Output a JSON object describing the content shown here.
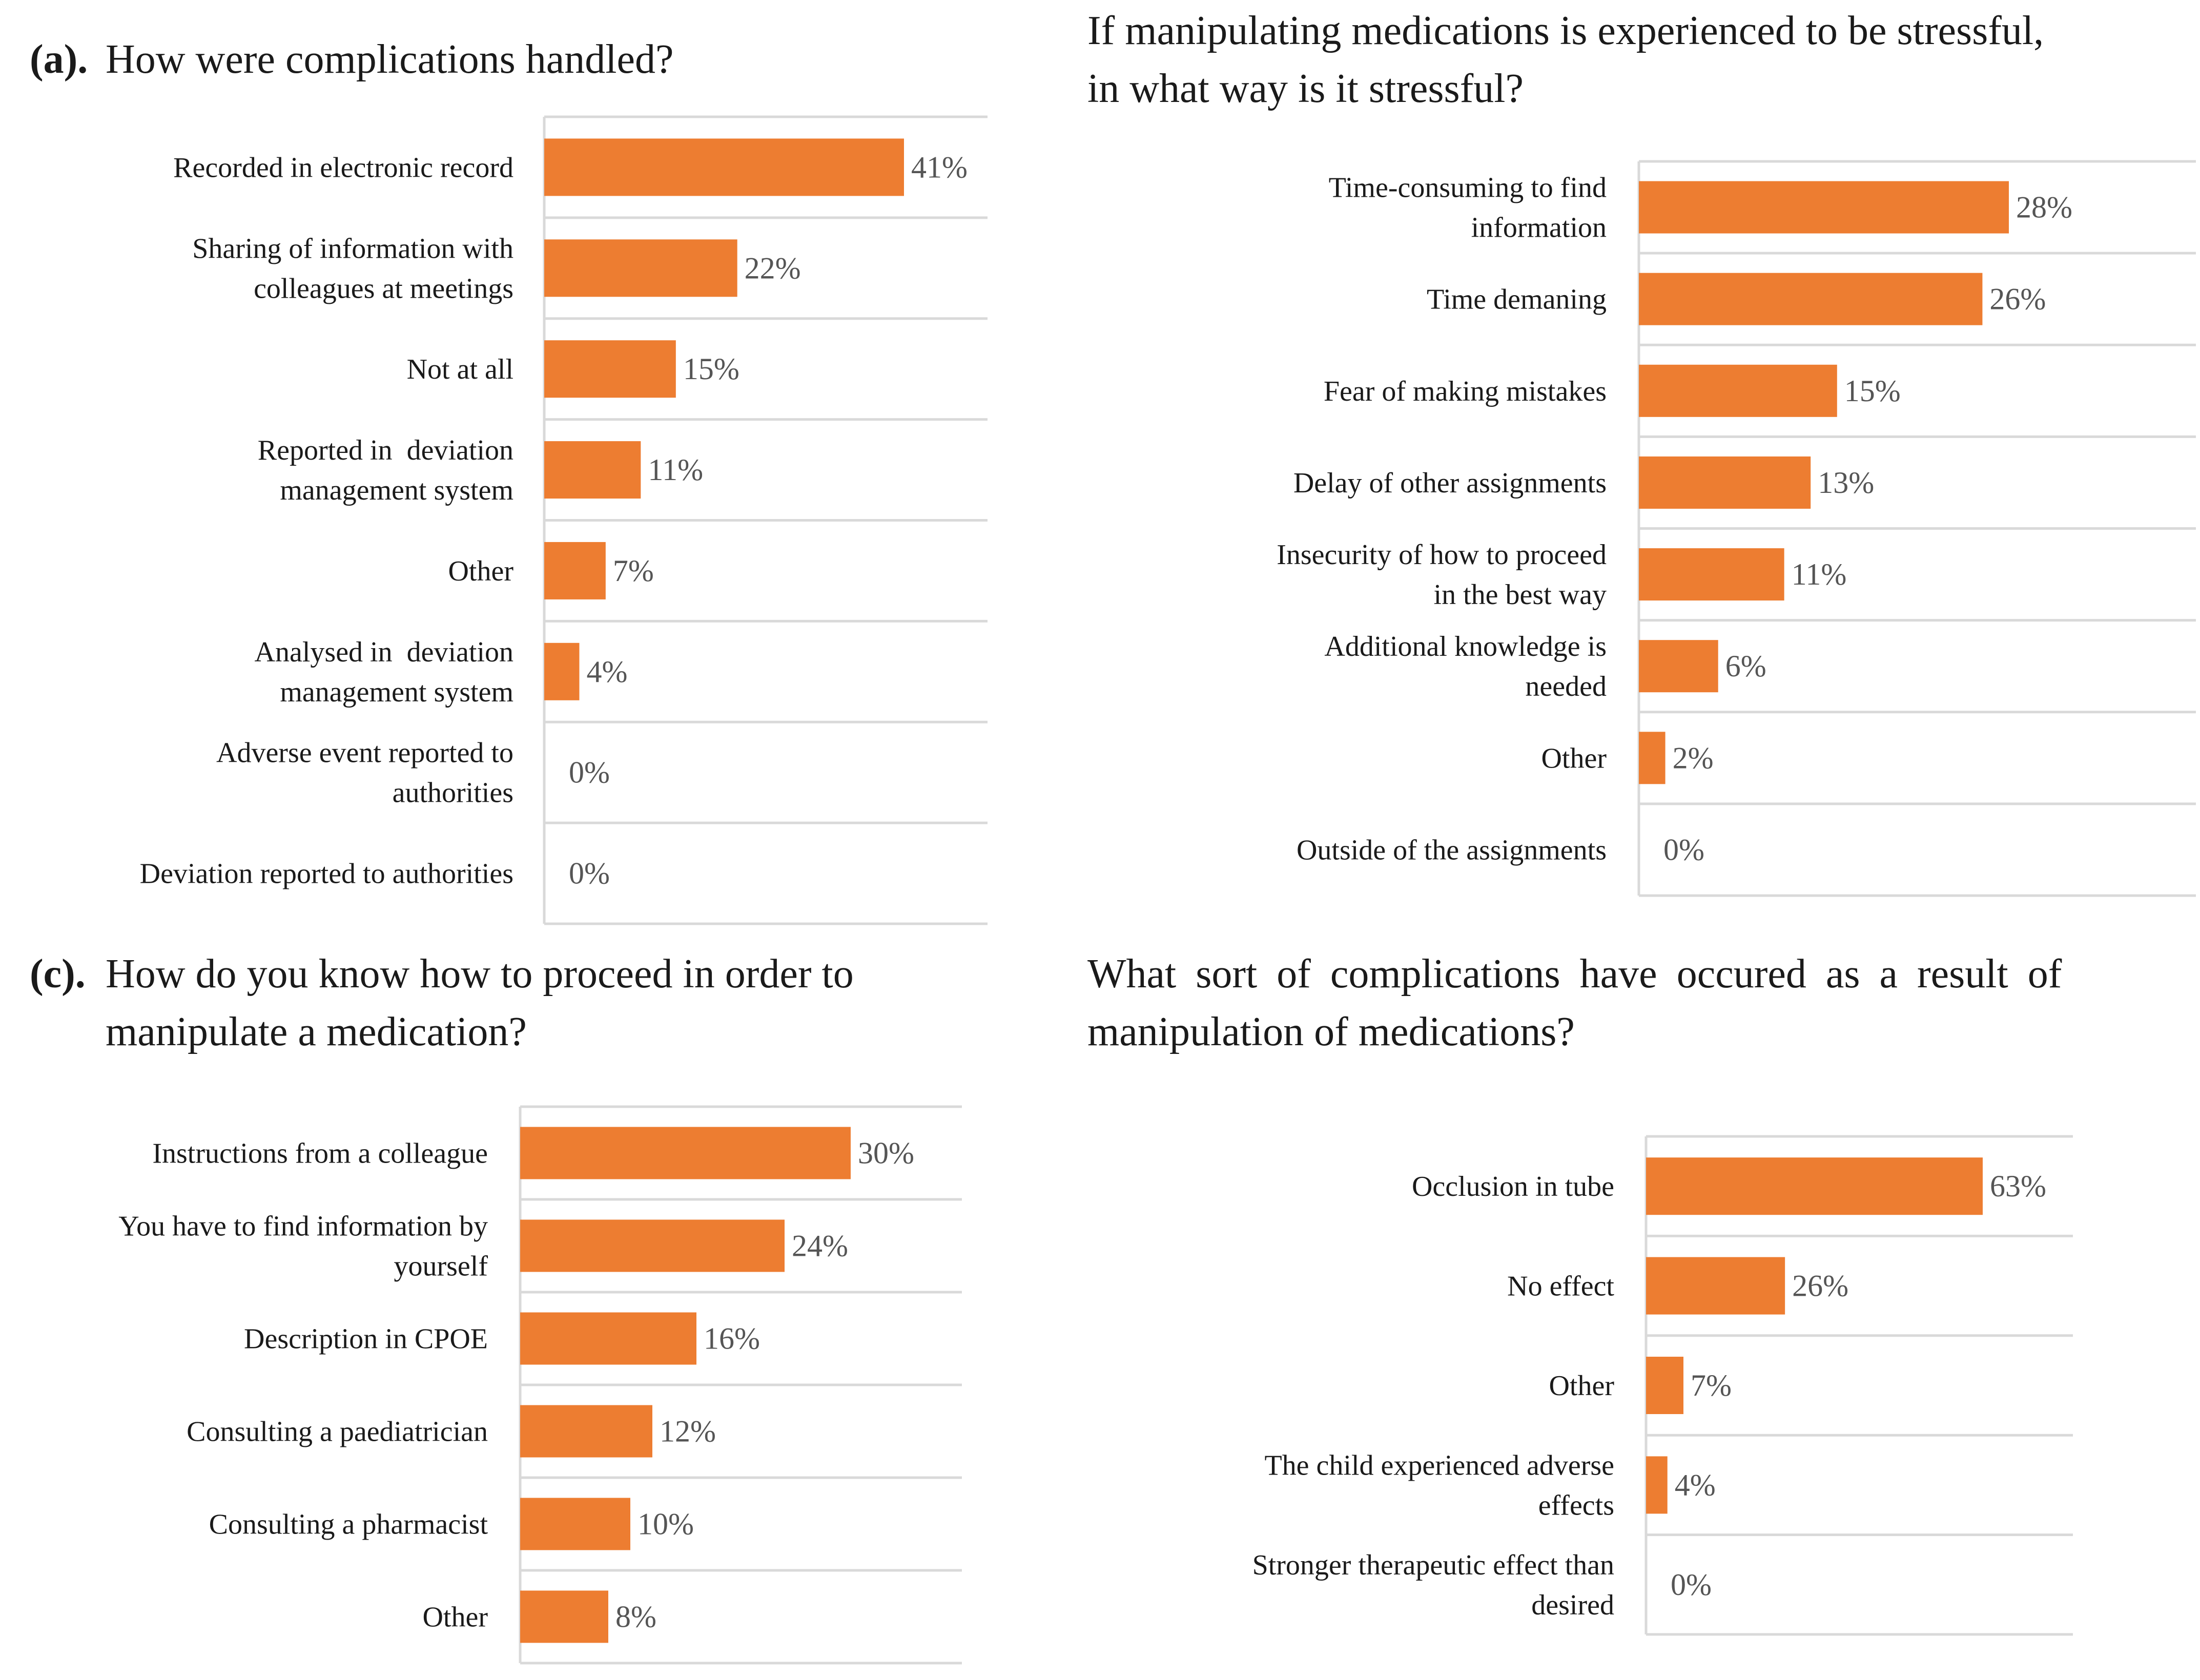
{
  "colors": {
    "bar": "#ED7D31",
    "grid": "#D9D9D9",
    "text": "#1A1A1A",
    "value_text": "#555555"
  },
  "chart_data": [
    {
      "type": "bar",
      "orientation": "horizontal",
      "panel_label": "(a).",
      "title": "How were complications handled?",
      "title_lines": [
        "How were complications handled?"
      ],
      "categories": [
        "Recorded in electronic record",
        "Sharing of information with colleagues at meetings",
        "Not at all",
        "Reported in  deviation management system",
        "Other",
        "Analysed in  deviation management system",
        "Adverse event reported to authorities",
        "Deviation reported to authorities"
      ],
      "category_lines": [
        [
          "Recorded in electronic record"
        ],
        [
          "Sharing of information with",
          "colleagues at meetings"
        ],
        [
          "Not at all"
        ],
        [
          "Reported in  deviation",
          "management system"
        ],
        [
          "Other"
        ],
        [
          "Analysed in  deviation",
          "management system"
        ],
        [
          "Adverse event reported to",
          "authorities"
        ],
        [
          "Deviation reported to authorities"
        ]
      ],
      "values": [
        41,
        22,
        15,
        11,
        7,
        4,
        0,
        0
      ],
      "value_labels": [
        "41%",
        "22%",
        "15%",
        "11%",
        "7%",
        "4%",
        "0%",
        "0%"
      ],
      "xlim": [
        0,
        50
      ],
      "unit": "%"
    },
    {
      "type": "bar",
      "orientation": "horizontal",
      "panel_label": "",
      "title": "If manipulating medications is experienced to be stressful, in what way is it stressful?",
      "title_lines": [
        "If manipulating medications is experienced to be stressful,",
        "in what way is it stressful?"
      ],
      "categories": [
        "Time-consuming to find information",
        "Time demaning",
        "Fear of making mistakes",
        "Delay of other assignments",
        "Insecurity of how to proceed in the best way",
        "Additional knowledge is needed",
        "Other",
        "Outside of the assignments"
      ],
      "category_lines": [
        [
          "Time-consuming to find",
          "information"
        ],
        [
          "Time demaning"
        ],
        [
          "Fear of making mistakes"
        ],
        [
          "Delay of other assignments"
        ],
        [
          "Insecurity of how to proceed",
          "in the best way"
        ],
        [
          "Additional knowledge is",
          "needed"
        ],
        [
          "Other"
        ],
        [
          "Outside of the assignments"
        ]
      ],
      "values": [
        28,
        26,
        15,
        13,
        11,
        6,
        2,
        0
      ],
      "value_labels": [
        "28%",
        "26%",
        "15%",
        "13%",
        "11%",
        "6%",
        "2%",
        "0%"
      ],
      "xlim": [
        0,
        28
      ],
      "unit": "%"
    },
    {
      "type": "bar",
      "orientation": "horizontal",
      "panel_label": "(c).",
      "title": "How do you know how to proceed in order to manipulate a medication?",
      "title_lines": [
        "How do you know how to proceed in order to",
        "manipulate a medication?"
      ],
      "categories": [
        "Instructions from a colleague",
        "You have to find information by yourself",
        "Description in CPOE",
        "Consulting a paediatrician",
        "Consulting a pharmacist",
        "Other"
      ],
      "category_lines": [
        [
          "Instructions from a colleague"
        ],
        [
          "You have to find information by",
          "yourself"
        ],
        [
          "Description in CPOE"
        ],
        [
          "Consulting a paediatrician"
        ],
        [
          "Consulting a pharmacist"
        ],
        [
          "Other"
        ]
      ],
      "values": [
        30,
        24,
        16,
        12,
        10,
        8
      ],
      "value_labels": [
        "30%",
        "24%",
        "16%",
        "12%",
        "10%",
        "8%"
      ],
      "xlim": [
        0,
        40
      ],
      "unit": "%"
    },
    {
      "type": "bar",
      "orientation": "horizontal",
      "panel_label": "",
      "title": "What sort of complications have occured as a result of manipulation of medications?",
      "title_lines": [
        "What sort of complications have occured as a result of",
        "manipulation of medications?"
      ],
      "categories": [
        "Occlusion in tube",
        "No effect",
        "Other",
        "The child experienced adverse effects",
        "Stronger therapeutic effect than desired"
      ],
      "category_lines": [
        [
          "Occlusion in tube"
        ],
        [
          "No effect"
        ],
        [
          "Other"
        ],
        [
          "The child experienced adverse",
          "effects"
        ],
        [
          "Stronger therapeutic effect than",
          "desired"
        ]
      ],
      "values": [
        63,
        26,
        7,
        4,
        0
      ],
      "value_labels": [
        "63%",
        "26%",
        "7%",
        "4%",
        "0%"
      ],
      "xlim": [
        0,
        75
      ],
      "unit": "%"
    }
  ]
}
